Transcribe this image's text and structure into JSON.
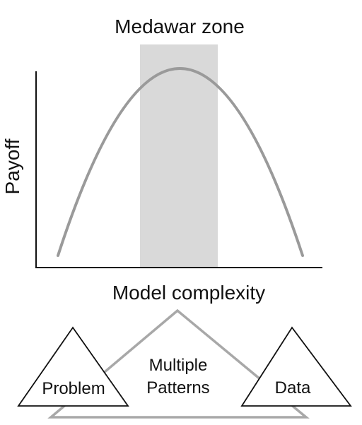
{
  "diagram": {
    "zone_label": "Medawar zone",
    "y_axis_label": "Payoff",
    "x_axis_label": "Model complexity",
    "triangles": {
      "left": "Problem",
      "center_line1": "Multiple",
      "center_line2": "Patterns",
      "right": "Data"
    }
  },
  "colors": {
    "curve": "#9a9a9a",
    "zone_fill": "#d9d9d9",
    "axis": "#111111",
    "center_triangle_stroke": "#a8a8a8",
    "side_triangle_stroke": "#111111"
  }
}
